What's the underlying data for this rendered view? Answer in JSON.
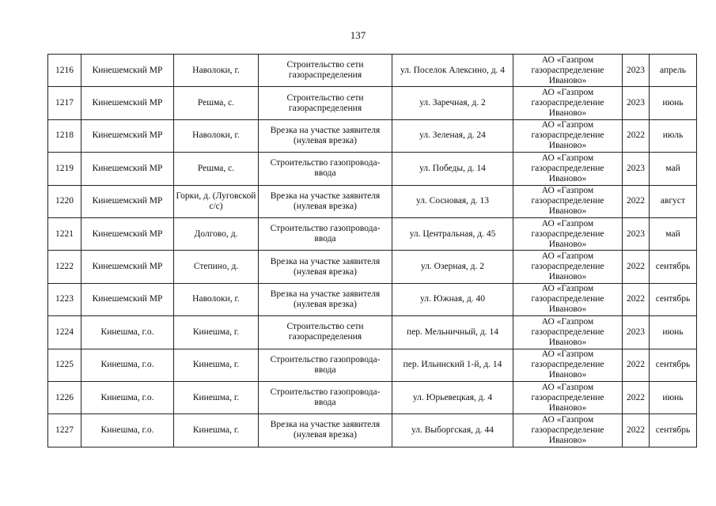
{
  "page_number": "137",
  "rows": [
    [
      "1216",
      "Кинешемский МР",
      "Наволоки, г.",
      "Строительство сети газораспределения",
      "ул. Поселок Алексино, д. 4",
      "АО «Газпром газораспределение Иваново»",
      "2023",
      "апрель"
    ],
    [
      "1217",
      "Кинешемский МР",
      "Решма, с.",
      "Строительство сети газораспределения",
      "ул. Заречная, д. 2",
      "АО «Газпром газораспределение Иваново»",
      "2023",
      "июнь"
    ],
    [
      "1218",
      "Кинешемский МР",
      "Наволоки, г.",
      "Врезка на участке заявителя (нулевая врезка)",
      "ул. Зеленая, д. 24",
      "АО «Газпром газораспределение Иваново»",
      "2022",
      "июль"
    ],
    [
      "1219",
      "Кинешемский МР",
      "Решма, с.",
      "Строительство газопровода-ввода",
      "ул. Победы, д. 14",
      "АО «Газпром газораспределение Иваново»",
      "2023",
      "май"
    ],
    [
      "1220",
      "Кинешемский МР",
      "Горки, д. (Луговской с/с)",
      "Врезка на участке заявителя (нулевая врезка)",
      "ул. Сосновая, д. 13",
      "АО «Газпром газораспределение Иваново»",
      "2022",
      "август"
    ],
    [
      "1221",
      "Кинешемский МР",
      "Долгово, д.",
      "Строительство газопровода-ввода",
      "ул. Центральная, д. 45",
      "АО «Газпром газораспределение Иваново»",
      "2023",
      "май"
    ],
    [
      "1222",
      "Кинешемский МР",
      "Степино, д.",
      "Врезка на участке заявителя (нулевая врезка)",
      "ул. Озерная, д. 2",
      "АО «Газпром газораспределение Иваново»",
      "2022",
      "сентябрь"
    ],
    [
      "1223",
      "Кинешемский МР",
      "Наволоки, г.",
      "Врезка на участке заявителя (нулевая врезка)",
      "ул. Южная, д. 40",
      "АО «Газпром газораспределение Иваново»",
      "2022",
      "сентябрь"
    ],
    [
      "1224",
      "Кинешма, г.о.",
      "Кинешма, г.",
      "Строительство сети газораспределения",
      "пер. Мельничный, д. 14",
      "АО «Газпром газораспределение Иваново»",
      "2023",
      "июнь"
    ],
    [
      "1225",
      "Кинешма, г.о.",
      "Кинешма, г.",
      "Строительство газопровода-ввода",
      "пер. Ильинский 1-й, д. 14",
      "АО «Газпром газораспределение Иваново»",
      "2022",
      "сентябрь"
    ],
    [
      "1226",
      "Кинешма, г.о.",
      "Кинешма, г.",
      "Строительство газопровода-ввода",
      "ул. Юрьевецкая, д. 4",
      "АО «Газпром газораспределение Иваново»",
      "2022",
      "июнь"
    ],
    [
      "1227",
      "Кинешма, г.о.",
      "Кинешма, г.",
      "Врезка на участке заявителя (нулевая врезка)",
      "ул. Выборгская, д. 44",
      "АО «Газпром газораспределение Иваново»",
      "2022",
      "сентябрь"
    ]
  ]
}
